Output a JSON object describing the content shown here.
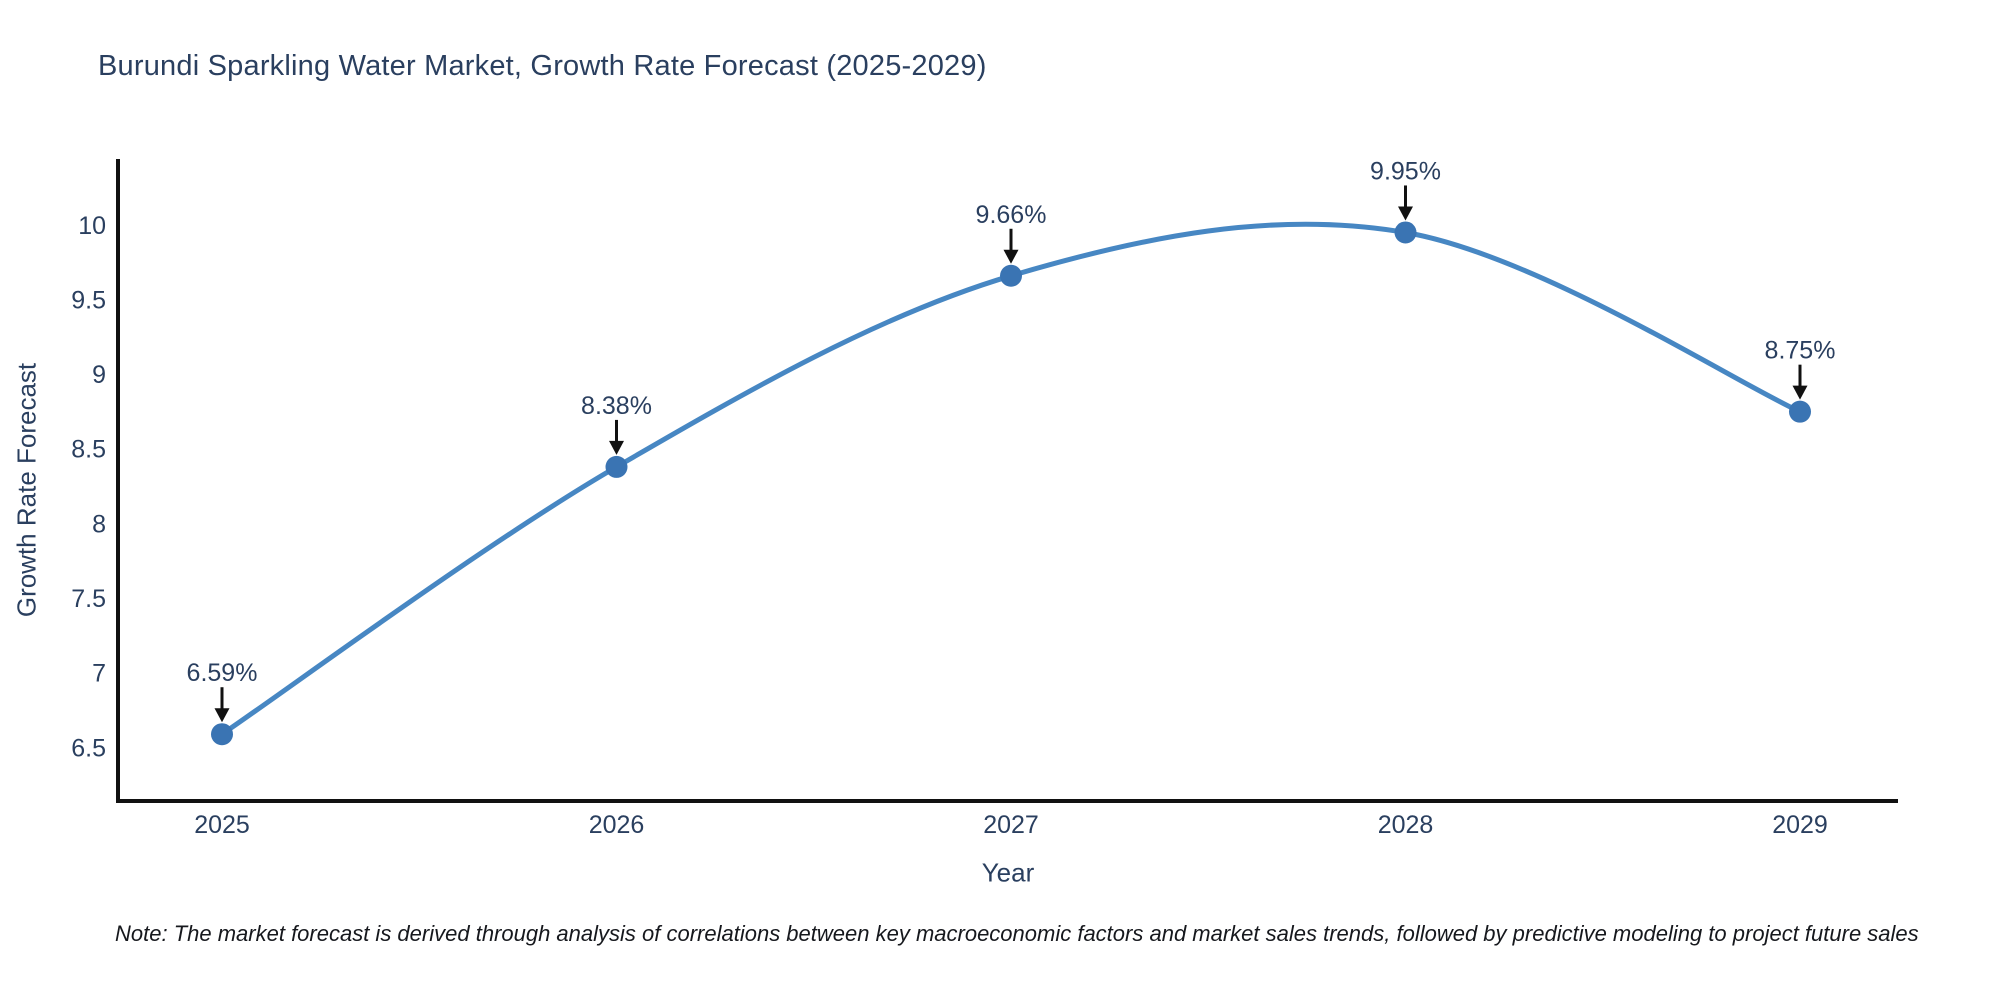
{
  "page": {
    "note": "Note: The market forecast is derived through analysis of correlations between key macroeconomic factors and market sales trends, followed by predictive modeling to project future sales"
  },
  "colors": {
    "background": "#ffffff",
    "text": "#2a3f5f",
    "axis": "#111111",
    "line": "#4787c3",
    "marker": "#3a74b3",
    "arrow": "#111111",
    "note_text": "#16181d"
  },
  "chart_data": {
    "type": "line",
    "title": "Burundi Sparkling Water Market, Growth Rate Forecast (2025-2029)",
    "xlabel": "Year",
    "ylabel": "Growth Rate Forecast",
    "categories": [
      2025,
      2026,
      2027,
      2028,
      2029
    ],
    "values": [
      6.59,
      8.38,
      9.66,
      9.95,
      8.75
    ],
    "point_labels": [
      "6.59%",
      "8.38%",
      "9.66%",
      "9.95%",
      "8.75%"
    ],
    "yticks": [
      6.5,
      7,
      7.5,
      8,
      8.5,
      9,
      9.5,
      10
    ],
    "ylim": [
      6.15,
      10.44
    ],
    "line_shape": "spline",
    "grid": false,
    "legend_position": "none",
    "annotation_style": "value label above point with downward black arrow"
  }
}
